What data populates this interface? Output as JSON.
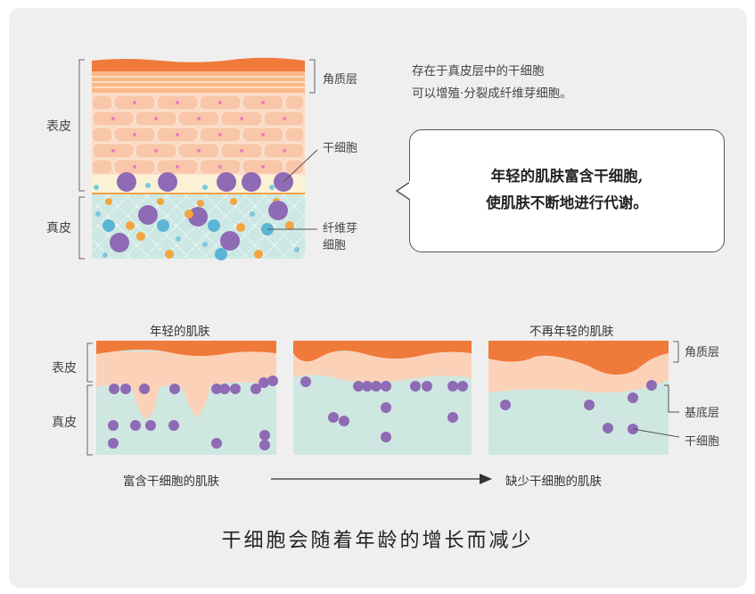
{
  "top_diagram": {
    "epidermis_label": "表皮",
    "dermis_label": "真皮",
    "stratum_corneum_label": "角质层",
    "stem_cell_label": "干细胞",
    "fibroblast_label_line1": "纤维芽",
    "fibroblast_label_line2": "细胞"
  },
  "description": {
    "line1": "存在于真皮层中的干细胞",
    "line2": "可以增殖·分裂成纤维芽细胞。"
  },
  "bubble": {
    "line1": "年轻的肌肤富含干细胞,",
    "line2": "使肌肤不断地进行代谢。"
  },
  "bottom_diagram": {
    "young_title": "年轻的肌肤",
    "old_title": "不再年轻的肌肤",
    "epidermis_label": "表皮",
    "dermis_label": "真皮",
    "stratum_corneum_label": "角质层",
    "basal_layer_label": "基底层",
    "stem_cell_label": "干细胞",
    "rich_caption": "富含干细胞的肌肤",
    "lacking_caption": "缺少干细胞的肌肤"
  },
  "conclusion": "干细胞会随着年龄的增长而减少",
  "colors": {
    "background": "#efefef",
    "corneum": "#f07a3a",
    "epidermis": "#fbd2b8",
    "dermis": "#cfe7e1",
    "stem_cell": "#8e6bb4",
    "fibroblast_blue": "#5ab5d6",
    "fibroblast_orange": "#f4a540"
  }
}
